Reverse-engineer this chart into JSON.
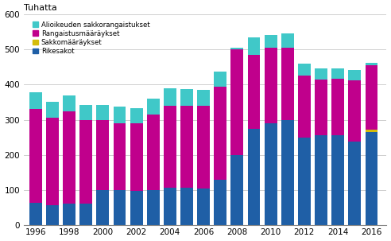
{
  "years": [
    1996,
    1997,
    1998,
    1999,
    2000,
    2001,
    2002,
    2003,
    2004,
    2005,
    2006,
    2007,
    2008,
    2009,
    2010,
    2011,
    2012,
    2013,
    2014,
    2015,
    2016
  ],
  "rikesakot": [
    63,
    57,
    62,
    62,
    100,
    100,
    97,
    100,
    108,
    108,
    105,
    130,
    200,
    275,
    290,
    300,
    250,
    255,
    255,
    237,
    265
  ],
  "sakkomaaraykset": [
    0,
    0,
    0,
    0,
    0,
    0,
    0,
    0,
    0,
    0,
    0,
    0,
    0,
    0,
    0,
    0,
    0,
    0,
    0,
    0,
    8
  ],
  "rangaistusmaaraykset": [
    268,
    248,
    262,
    238,
    200,
    190,
    193,
    215,
    232,
    232,
    235,
    265,
    300,
    210,
    215,
    205,
    175,
    160,
    162,
    175,
    183
  ],
  "alioikeuden": [
    47,
    45,
    45,
    43,
    43,
    48,
    42,
    45,
    50,
    48,
    45,
    43,
    4,
    50,
    35,
    40,
    35,
    30,
    30,
    30,
    5
  ],
  "colors": {
    "rikesakot": "#1F5FA6",
    "sakkomaaraykset": "#D4BC0A",
    "rangaistusmaaraykset": "#C0008C",
    "alioikeuden": "#40C8C8"
  },
  "ylabel": "Tuhatta",
  "ylim": [
    0,
    600
  ],
  "yticks": [
    0,
    100,
    200,
    300,
    400,
    500,
    600
  ],
  "xticks": [
    1996,
    1998,
    2000,
    2002,
    2004,
    2006,
    2008,
    2010,
    2012,
    2014,
    2016
  ],
  "background_color": "#ffffff",
  "grid_color": "#c8c8c8"
}
